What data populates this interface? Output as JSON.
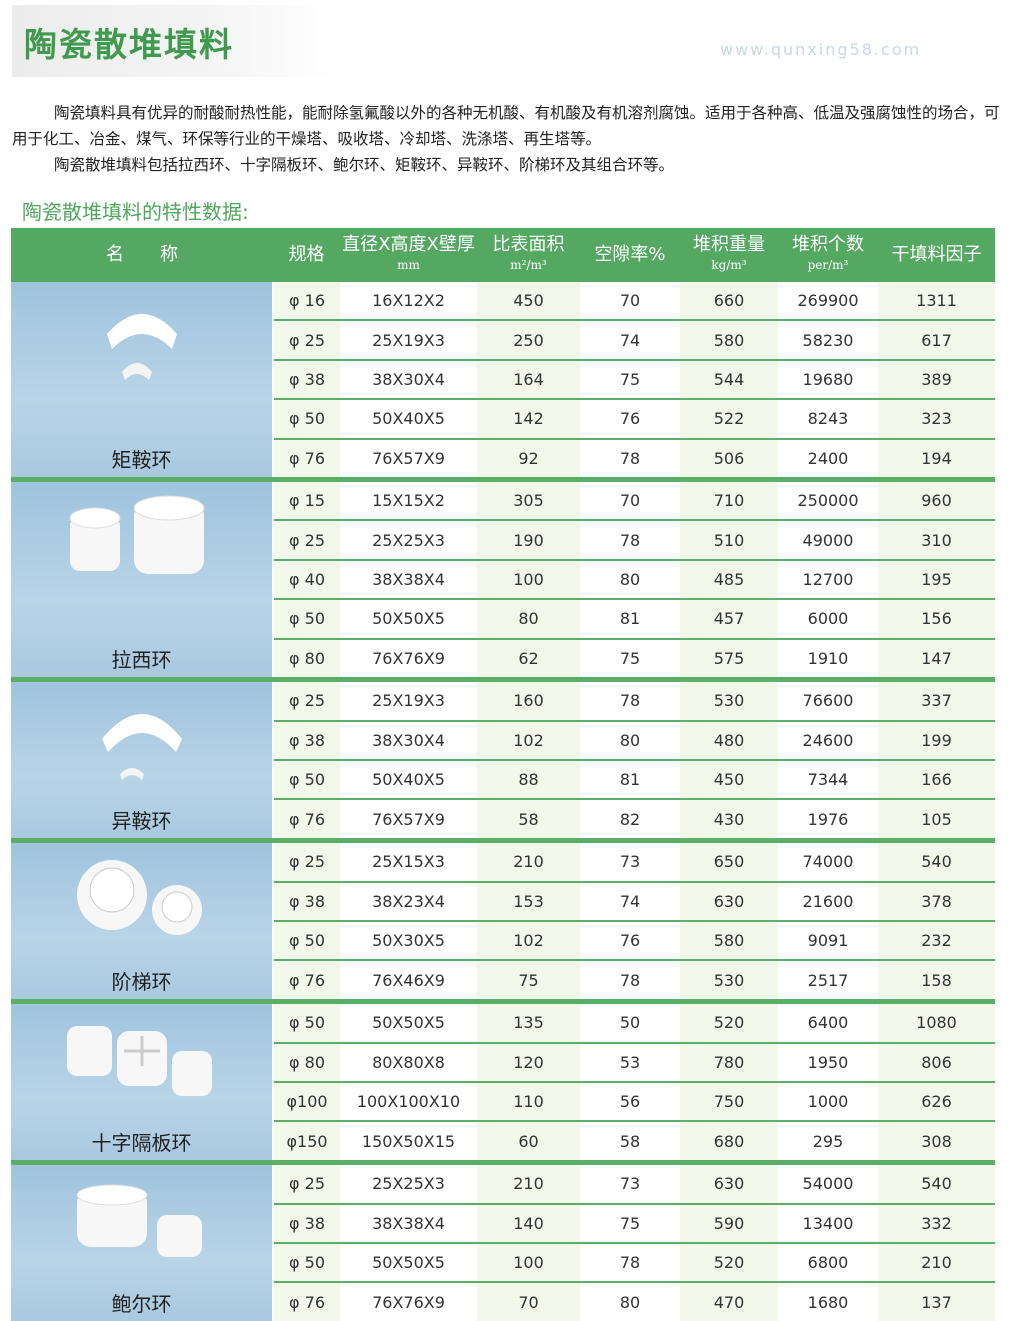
{
  "title": "陶瓷散堆填料",
  "intro": [
    "陶瓷填料具有优异的耐酸耐热性能，能耐除氢氟酸以外的各种无机酸、有机酸及有机溶剂腐蚀。适用于各种高、低温及强腐蚀性的场合，可用于化工、冶金、煤气、环保等行业的干燥塔、吸收塔、冷却塔、洗涤塔、再生塔等。",
    "陶瓷散堆填料包括拉西环、十字隔板环、鲍尔环、矩鞍环、异鞍环、阶梯环及其组合环等。"
  ],
  "subtitle": "陶瓷散堆填料的特性数据:",
  "watermark": "www.qunxing58.com",
  "headers": {
    "name": "名　　称",
    "spec": "规格",
    "dims": "直径X高度X壁厚",
    "dims_unit": "mm",
    "area": "比表面积",
    "area_unit": "m²/m³",
    "void": "空隙率%",
    "weight": "堆积重量",
    "weight_unit": "kg/m³",
    "count": "堆积个数",
    "count_unit": "per/m³",
    "factor": "干填料因子"
  },
  "groups": [
    {
      "name": "矩鞍环",
      "icon": "saddle-ring",
      "rows": [
        [
          "φ 16",
          "16X12X2",
          "450",
          "70",
          "660",
          "269900",
          "1311"
        ],
        [
          "φ 25",
          "25X19X3",
          "250",
          "74",
          "580",
          "58230",
          "617"
        ],
        [
          "φ 38",
          "38X30X4",
          "164",
          "75",
          "544",
          "19680",
          "389"
        ],
        [
          "φ 50",
          "50X40X5",
          "142",
          "76",
          "522",
          "8243",
          "323"
        ],
        [
          "φ 76",
          "76X57X9",
          "92",
          "78",
          "506",
          "2400",
          "194"
        ]
      ]
    },
    {
      "name": "拉西环",
      "icon": "raschig-ring",
      "rows": [
        [
          "φ 15",
          "15X15X2",
          "305",
          "70",
          "710",
          "250000",
          "960"
        ],
        [
          "φ 25",
          "25X25X3",
          "190",
          "78",
          "510",
          "49000",
          "310"
        ],
        [
          "φ 40",
          "38X38X4",
          "100",
          "80",
          "485",
          "12700",
          "195"
        ],
        [
          "φ 50",
          "50X50X5",
          "80",
          "81",
          "457",
          "6000",
          "156"
        ],
        [
          "φ 80",
          "76X76X9",
          "62",
          "75",
          "575",
          "1910",
          "147"
        ]
      ]
    },
    {
      "name": "异鞍环",
      "icon": "super-saddle",
      "rows": [
        [
          "φ 25",
          "25X19X3",
          "160",
          "78",
          "530",
          "76600",
          "337"
        ],
        [
          "φ 38",
          "38X30X4",
          "102",
          "80",
          "480",
          "24600",
          "199"
        ],
        [
          "φ 50",
          "50X40X5",
          "88",
          "81",
          "450",
          "7344",
          "166"
        ],
        [
          "φ 76",
          "76X57X9",
          "58",
          "82",
          "430",
          "1976",
          "105"
        ]
      ]
    },
    {
      "name": "阶梯环",
      "icon": "cascade-ring",
      "rows": [
        [
          "φ 25",
          "25X15X3",
          "210",
          "73",
          "650",
          "74000",
          "540"
        ],
        [
          "φ 38",
          "38X23X4",
          "153",
          "74",
          "630",
          "21600",
          "378"
        ],
        [
          "φ 50",
          "50X30X5",
          "102",
          "76",
          "580",
          "9091",
          "232"
        ],
        [
          "φ 76",
          "76X46X9",
          "75",
          "78",
          "530",
          "2517",
          "158"
        ]
      ]
    },
    {
      "name": "十字隔板环",
      "icon": "cross-partition-ring",
      "rows": [
        [
          "φ 50",
          "50X50X5",
          "135",
          "50",
          "520",
          "6400",
          "1080"
        ],
        [
          "φ 80",
          "80X80X8",
          "120",
          "53",
          "780",
          "1950",
          "806"
        ],
        [
          "φ100",
          "100X100X10",
          "110",
          "56",
          "750",
          "1000",
          "626"
        ],
        [
          "φ150",
          "150X50X15",
          "60",
          "58",
          "680",
          "295",
          "308"
        ]
      ]
    },
    {
      "name": "鲍尔环",
      "icon": "pall-ring",
      "rows": [
        [
          "φ 25",
          "25X25X3",
          "210",
          "73",
          "630",
          "54000",
          "540"
        ],
        [
          "φ 38",
          "38X38X4",
          "140",
          "75",
          "590",
          "13400",
          "332"
        ],
        [
          "φ 50",
          "50X50X5",
          "100",
          "78",
          "520",
          "6800",
          "210"
        ],
        [
          "φ 76",
          "76X76X9",
          "70",
          "80",
          "470",
          "1680",
          "137"
        ]
      ]
    }
  ]
}
